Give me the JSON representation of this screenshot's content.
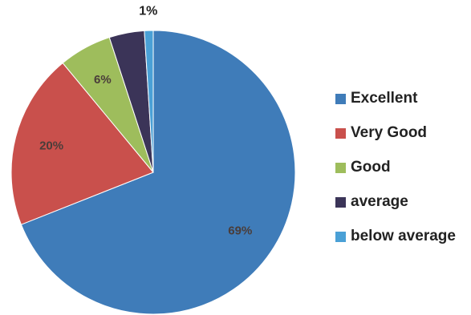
{
  "chart_data": {
    "type": "pie",
    "title": "",
    "categories": [
      "Excellent",
      "Very Good",
      "Good",
      "average",
      "below average"
    ],
    "series": [
      {
        "values": [
          69,
          20,
          6,
          4,
          1
        ]
      }
    ],
    "data_labels": [
      "69%",
      "20%",
      "6%",
      "",
      "1%"
    ],
    "colors": [
      "#3f7cb9",
      "#c9504c",
      "#9ebd5c",
      "#3b3458",
      "#4aa0d6"
    ],
    "legend_placement": "right"
  }
}
